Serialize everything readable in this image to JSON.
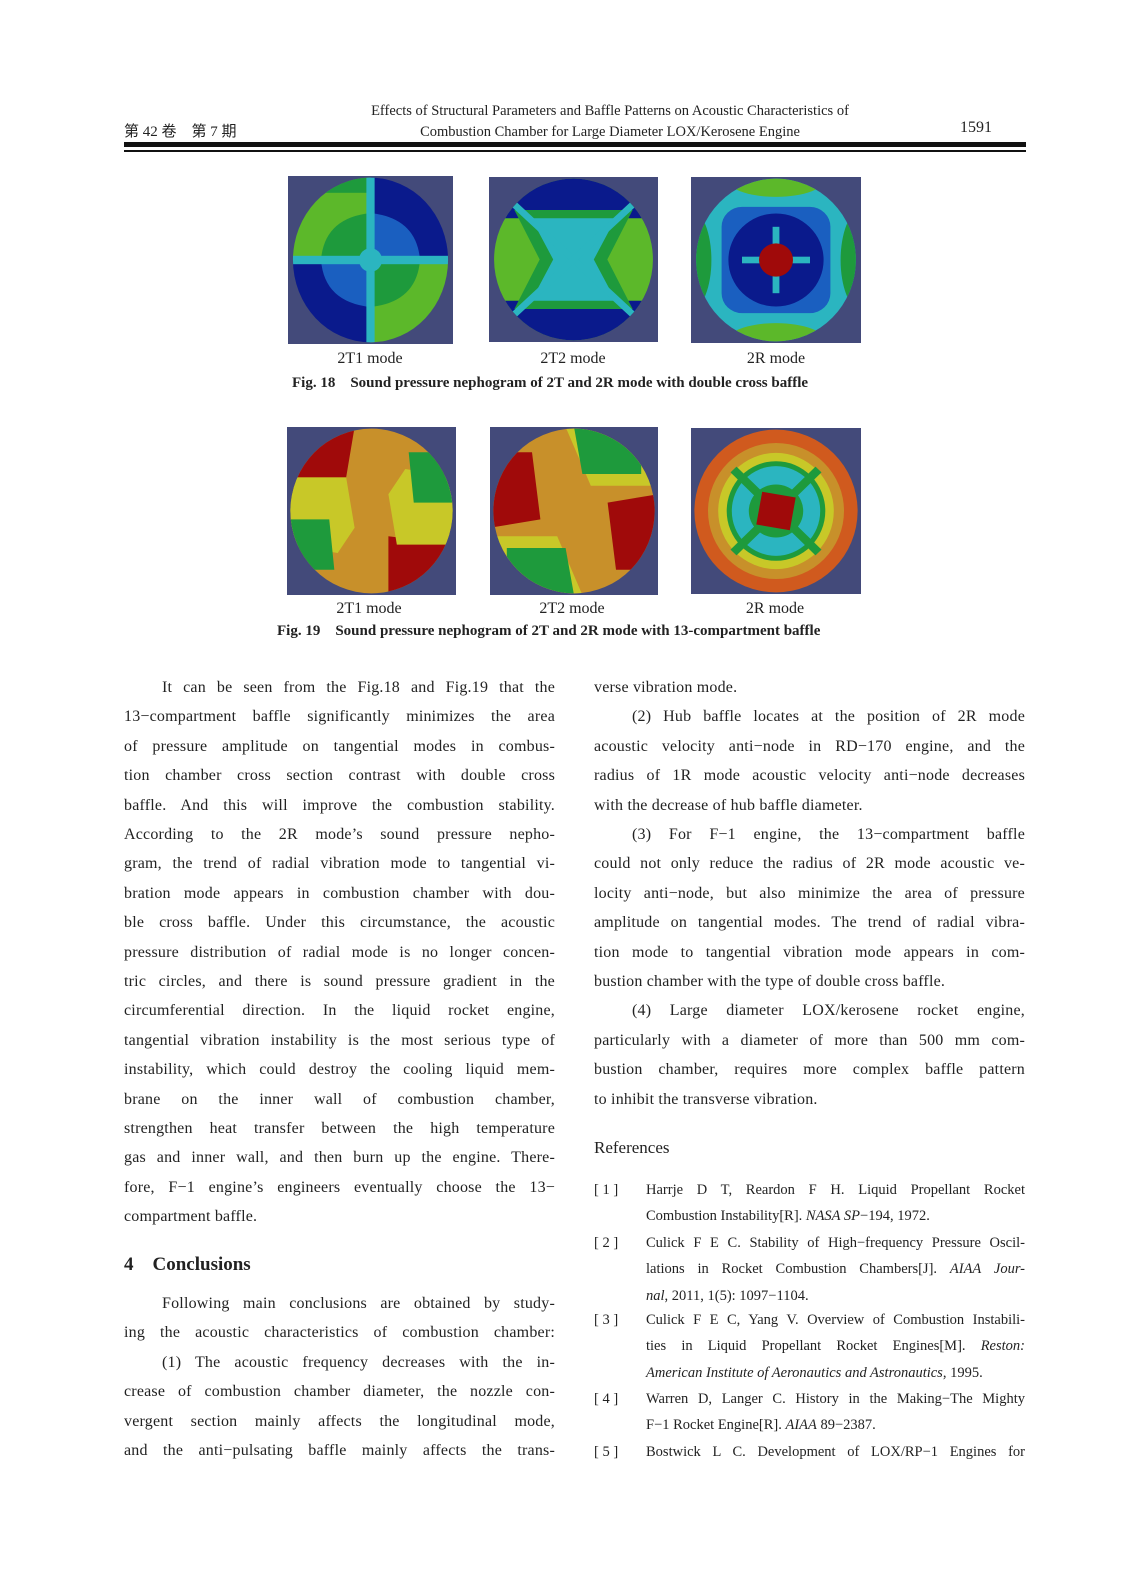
{
  "header": {
    "volume_issue": "第 42 卷　第 7 期",
    "title_line1": "Effects of Structural Parameters and Baffle Patterns on Acoustic Characteristics of",
    "title_line2": "Combustion Chamber for Large Diameter LOX/Kerosene Engine",
    "page_number": "1591"
  },
  "figures": [
    {
      "labels": [
        "2T1 mode",
        "2T2 mode",
        "2R mode"
      ],
      "caption_num": "Fig. 18",
      "caption": "Sound pressure nephogram of 2T and 2R mode with double cross baffle"
    },
    {
      "labels": [
        "2T1 mode",
        "2T2 mode",
        "2R mode"
      ],
      "caption_num": "Fig. 19",
      "caption": "Sound pressure nephogram of 2T and 2R mode with 13-compartment baffle"
    }
  ],
  "colors": {
    "background": "#434a7a",
    "dark_blue": "#0a1a8c",
    "blue": "#1a5fc0",
    "cyan": "#2bb5c0",
    "green": "#1e9a3c",
    "light_green": "#5cb82a",
    "yellow": "#c8c828",
    "orange": "#c8902a",
    "red_orange": "#d05a1e",
    "red": "#a00a0a"
  },
  "left_column": {
    "paragraph1": [
      "It can be seen from the Fig.18 and Fig.19 that the",
      "13−compartment baffle significantly minimizes the area",
      "of pressure amplitude on tangential modes in combus-",
      "tion chamber cross section contrast with double cross",
      "baffle. And this will improve the combustion stability.",
      "According to the 2R mode’s sound pressure nepho-",
      "gram, the trend of radial vibration mode to tangential vi-",
      "bration mode appears in combustion chamber with dou-",
      "ble cross baffle. Under this circumstance, the acoustic",
      "pressure distribution of radial mode is no longer concen-",
      "tric circles, and there is sound pressure gradient in the",
      "circumferential direction. In the liquid rocket engine,",
      "tangential vibration instability is the most serious type of",
      "instability, which could destroy the cooling liquid mem-",
      "brane on the inner wall of combustion chamber,",
      "strengthen heat transfer between the high temperature",
      "gas and inner wall, and then burn up the engine. There-",
      "fore, F−1 engine’s engineers eventually choose the 13−",
      "compartment baffle."
    ],
    "section_heading": "4　Conclusions",
    "paragraph2": [
      "Following main conclusions are obtained by study-",
      "ing the acoustic characteristics of combustion chamber:",
      "(1) The acoustic frequency decreases with the in-",
      "crease of combustion chamber diameter, the nozzle con-",
      "vergent section mainly affects the longitudinal mode,",
      "and the anti−pulsating baffle mainly affects the trans-"
    ]
  },
  "right_column": {
    "lines": [
      "verse vibration mode.",
      "(2) Hub baffle locates at the position of 2R mode",
      "acoustic velocity anti−node in RD−170 engine, and the",
      "radius of 1R mode acoustic velocity anti−node decreases",
      "with the decrease of hub baffle diameter.",
      "(3) For F−1 engine, the 13−compartment baffle",
      "could not only reduce the radius of 2R mode acoustic ve-",
      "locity anti−node, but also minimize the area of pressure",
      "amplitude on tangential modes. The trend of radial vibra-",
      "tion mode to tangential vibration mode appears in com-",
      "bustion chamber with the type of double cross baffle.",
      "(4) Large diameter LOX/kerosene rocket engine,",
      "particularly with a diameter of more than 500 mm com-",
      "bustion chamber, requires more complex baffle pattern",
      "to inhibit the transverse vibration."
    ],
    "references_heading": "References",
    "references": [
      {
        "num": "[ 1 ]",
        "lines": [
          [
            {
              "t": "Harrje D T, Reardon F H. Liquid Propellant Rocket"
            }
          ],
          [
            {
              "t": "Combustion Instability[R]. "
            },
            {
              "t": "NASA SP",
              "i": true
            },
            {
              "t": "−194, 1972."
            }
          ]
        ]
      },
      {
        "num": "[ 2 ]",
        "lines": [
          [
            {
              "t": "Culick F E C. Stability of High−frequency Pressure Oscil-"
            }
          ],
          [
            {
              "t": "lations in Rocket Combustion Chambers[J]. "
            },
            {
              "t": "AIAA Jour-",
              "i": true
            }
          ],
          [
            {
              "t": "nal",
              "i": true
            },
            {
              "t": ", 2011, 1(5): 1097−1104."
            }
          ]
        ]
      },
      {
        "num": "[ 3 ]",
        "lines": [
          [
            {
              "t": "Culick F E C, Yang V. Overview of Combustion Instabili-"
            }
          ],
          [
            {
              "t": "ties in Liquid Propellant Rocket Engines[M]. "
            },
            {
              "t": "Reston:",
              "i": true
            }
          ],
          [
            {
              "t": "American Institute of Aeronautics and Astronautics",
              "i": true
            },
            {
              "t": ", 1995."
            }
          ]
        ]
      },
      {
        "num": "[ 4 ]",
        "lines": [
          [
            {
              "t": "Warren D, Langer C. History in the Making−The Mighty"
            }
          ],
          [
            {
              "t": "F−1 Rocket Engine[R]. "
            },
            {
              "t": "AIAA",
              "i": true
            },
            {
              "t": " 89−2387."
            }
          ]
        ]
      },
      {
        "num": "[ 5 ]",
        "lines": [
          [
            {
              "t": "Bostwick L C. Development of LOX/RP−1 Engines for"
            }
          ]
        ]
      }
    ]
  }
}
